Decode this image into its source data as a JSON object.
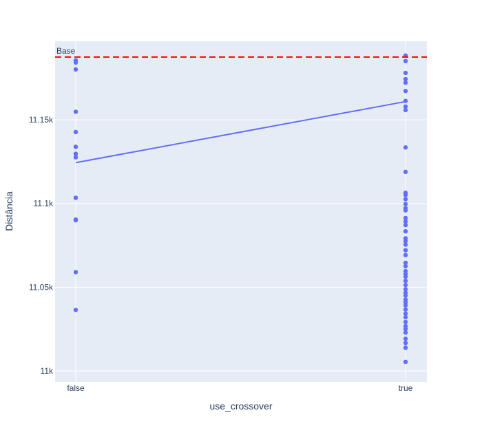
{
  "chart_data": {
    "type": "scatter",
    "xlabel": "use_crossover",
    "ylabel": "Distância",
    "categories": [
      "false",
      "true"
    ],
    "ylim": [
      10993.4,
      11196.9
    ],
    "y_ticks": [
      {
        "value": 11000,
        "label": "11k"
      },
      {
        "value": 11050,
        "label": "11.05k"
      },
      {
        "value": 11100,
        "label": "11.1k"
      },
      {
        "value": 11150,
        "label": "11.15k"
      }
    ],
    "baseline": {
      "value": 11187.5,
      "label": "Base",
      "color": "#ff0000"
    },
    "marker_color": "#636efa",
    "plot_bg": "#e5ecf6",
    "points": {
      "false": [
        11185.5,
        11184.2,
        11180.1,
        11154.8,
        11142.7,
        11133.9,
        11129.7,
        11127.6,
        11103.4,
        11090.4,
        11090.0,
        11059.0,
        11036.4
      ],
      "true": [
        11188.4,
        11185.1,
        11178.0,
        11174.3,
        11172.2,
        11167.2,
        11161.3,
        11157.9,
        11155.8,
        11133.5,
        11118.9,
        11106.4,
        11105.1,
        11102.6,
        11099.7,
        11097.2,
        11095.9,
        11091.3,
        11089.2,
        11087.1,
        11083.4,
        11079.2,
        11077.5,
        11075.4,
        11072.1,
        11069.2,
        11064.6,
        11062.5,
        11059.6,
        11057.9,
        11056.3,
        11053.8,
        11051.3,
        11048.8,
        11046.7,
        11045.0,
        11042.5,
        11040.9,
        11039.2,
        11036.7,
        11034.2,
        11032.1,
        11029.2,
        11026.7,
        11025.0,
        11022.9,
        11019.2,
        11016.7,
        11013.8,
        11005.4
      ]
    },
    "trend_line": [
      {
        "x": "false",
        "y": 11124.4
      },
      {
        "x": "true",
        "y": 11160.9
      }
    ]
  }
}
